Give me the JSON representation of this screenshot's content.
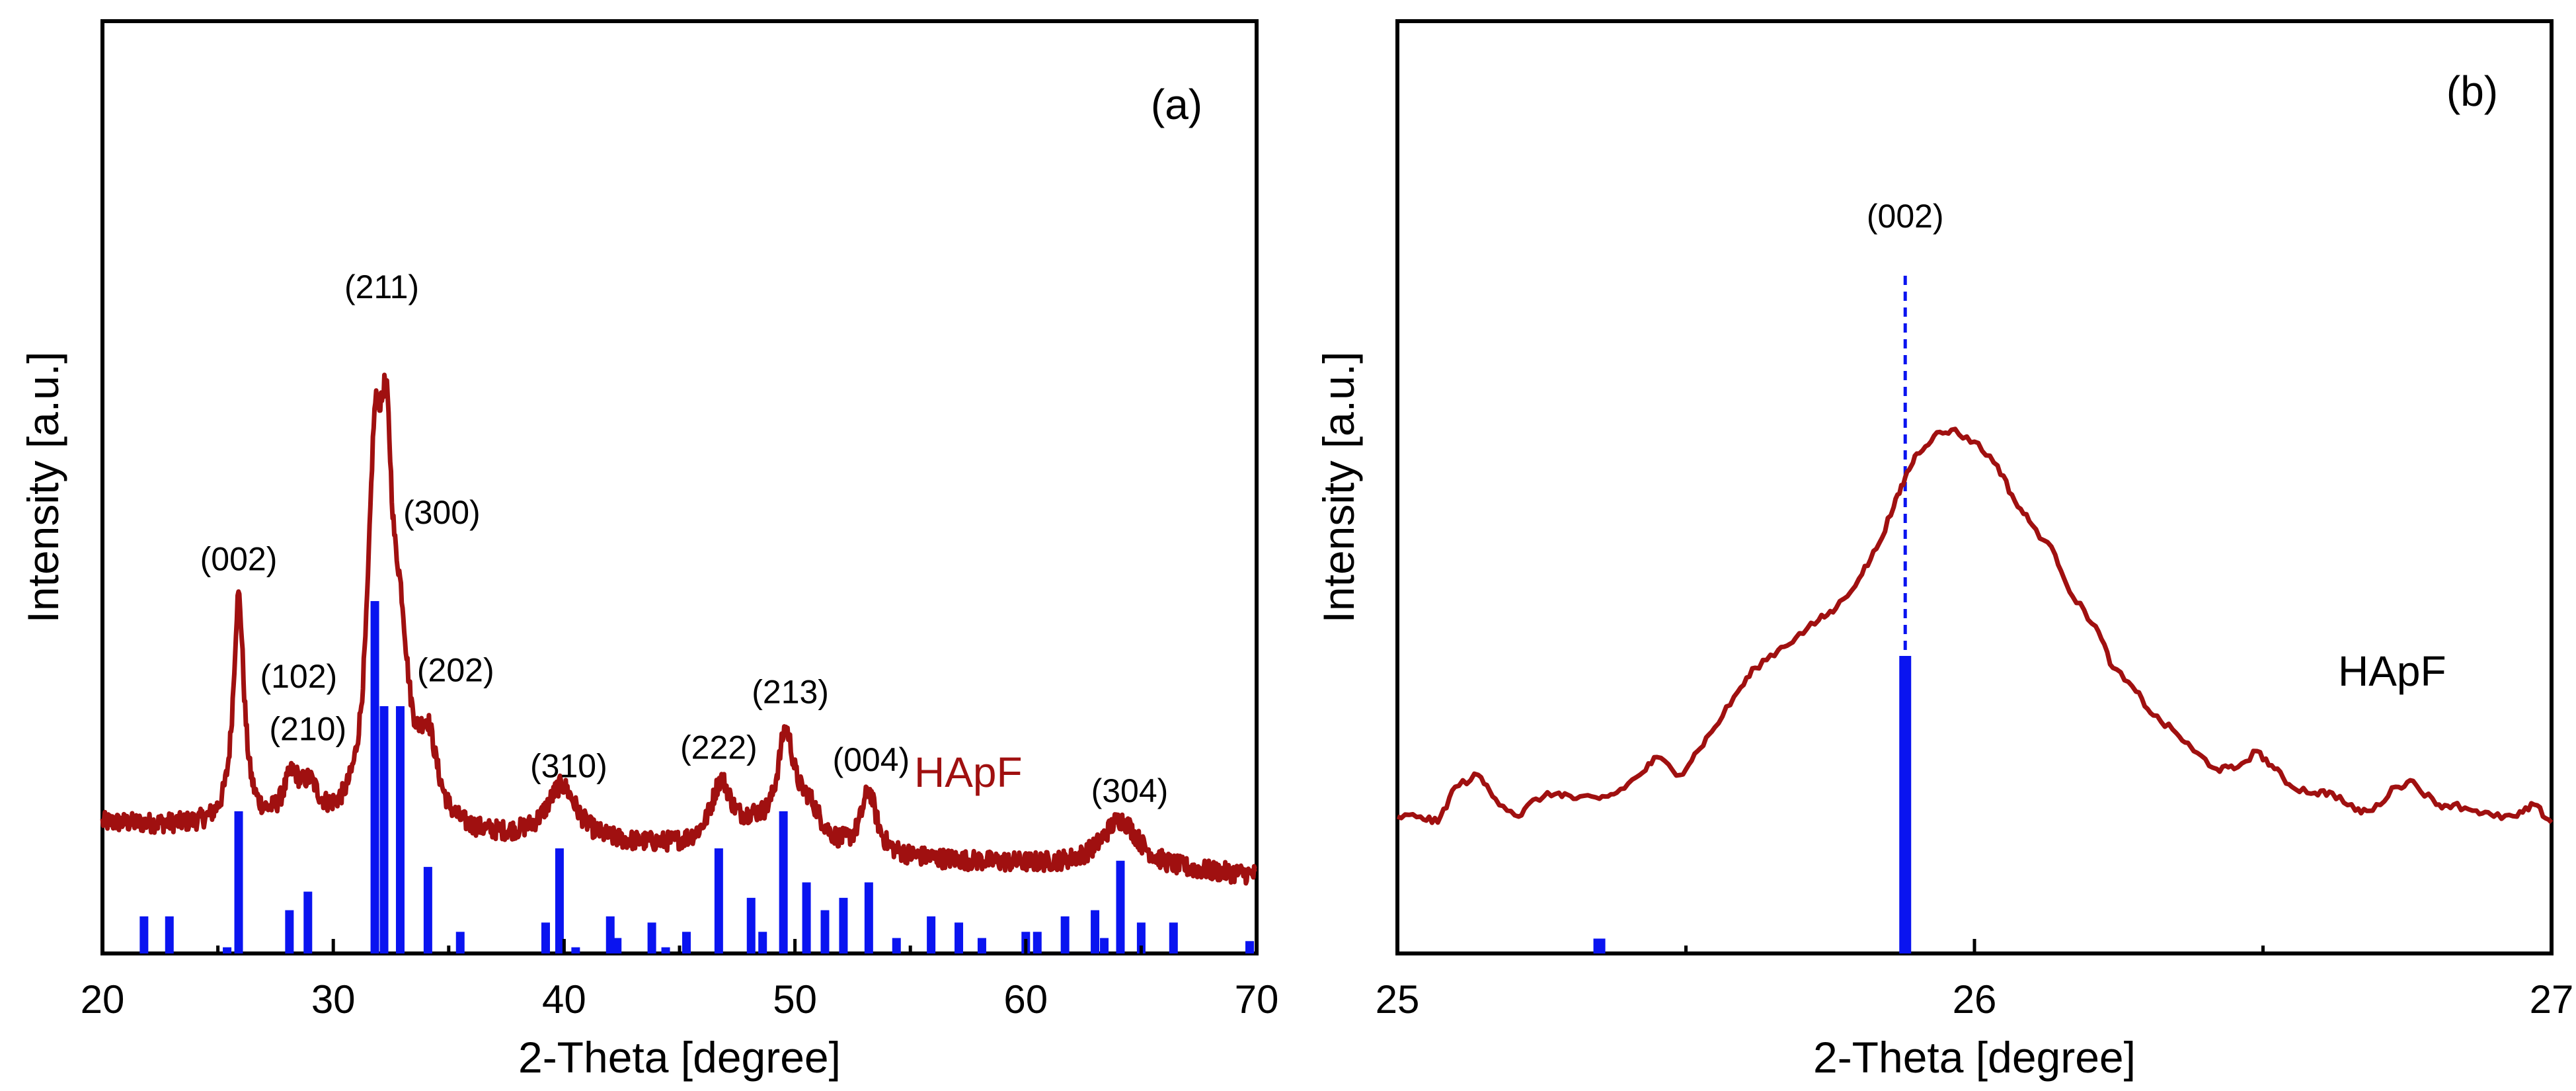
{
  "colors": {
    "curve": "#a01010",
    "reference": "#0a14f0",
    "axis": "#000000"
  },
  "chart_data": [
    {
      "type": "line",
      "panel_label": "(a)",
      "xlabel": "2-Theta [degree]",
      "ylabel": "Intensity [a.u.]",
      "xlim": [
        20,
        70
      ],
      "ylim": [
        0,
        100
      ],
      "xticks": [
        20,
        30,
        40,
        50,
        60,
        70
      ],
      "sample_label": "HApF",
      "series": [
        {
          "name": "HApF",
          "baseline": 21,
          "tail": 12.5,
          "peaks": [
            {
              "x": 25.9,
              "height": 37,
              "width": 0.28
            },
            {
              "x": 28.2,
              "height": 7,
              "width": 0.45
            },
            {
              "x": 29.0,
              "height": 5,
              "width": 0.45
            },
            {
              "x": 31.8,
              "height": 52,
              "width": 0.38
            },
            {
              "x": 32.3,
              "height": 44,
              "width": 0.32
            },
            {
              "x": 32.9,
              "height": 24,
              "width": 0.45
            },
            {
              "x": 34.1,
              "height": 13,
              "width": 0.5
            },
            {
              "x": 39.9,
              "height": 9,
              "width": 0.8
            },
            {
              "x": 46.8,
              "height": 10,
              "width": 0.55
            },
            {
              "x": 48.2,
              "height": 3,
              "width": 0.8
            },
            {
              "x": 49.6,
              "height": 17,
              "width": 0.45
            },
            {
              "x": 50.6,
              "height": 6,
              "width": 0.7
            },
            {
              "x": 53.2,
              "height": 10,
              "width": 0.4
            },
            {
              "x": 64.1,
              "height": 8,
              "width": 1.0
            }
          ]
        }
      ],
      "reference": {
        "x": [
          21.8,
          22.9,
          25.4,
          25.9,
          28.1,
          28.9,
          31.8,
          32.2,
          32.9,
          34.1,
          35.5,
          39.2,
          39.8,
          40.5,
          42.0,
          42.3,
          43.8,
          44.4,
          45.3,
          46.7,
          48.1,
          48.6,
          49.5,
          50.5,
          51.3,
          52.1,
          53.2,
          54.4,
          55.9,
          57.1,
          58.1,
          60.0,
          60.5,
          61.7,
          63.0,
          63.4,
          64.1,
          65.0,
          66.4,
          69.7
        ],
        "values": [
          6,
          6,
          1,
          23,
          7,
          10,
          57,
          40,
          40,
          14,
          3.5,
          5,
          17,
          1,
          6,
          2.5,
          5,
          1,
          3.5,
          17,
          9,
          3.5,
          23,
          11.5,
          7,
          9,
          11.5,
          2.5,
          6,
          5,
          2.5,
          3.5,
          3.5,
          6,
          7,
          2.5,
          15,
          5,
          5,
          2
        ]
      },
      "annotations": [
        {
          "text": "(002)",
          "x": 25.9,
          "y": 62
        },
        {
          "text": "(102)",
          "x": 28.5,
          "y": 43
        },
        {
          "text": "(210)",
          "x": 28.9,
          "y": 34.5
        },
        {
          "text": "(211)",
          "x": 32.1,
          "y": 106
        },
        {
          "text": "(300)",
          "x": 34.7,
          "y": 69.5
        },
        {
          "text": "(202)",
          "x": 35.3,
          "y": 44
        },
        {
          "text": "(310)",
          "x": 40.2,
          "y": 28.5
        },
        {
          "text": "(222)",
          "x": 46.7,
          "y": 31.5
        },
        {
          "text": "(213)",
          "x": 49.8,
          "y": 40.5
        },
        {
          "text": "(004)",
          "x": 53.3,
          "y": 29.5
        },
        {
          "text": "(304)",
          "x": 64.5,
          "y": 24.5
        }
      ]
    },
    {
      "type": "line",
      "panel_label": "(b)",
      "xlabel": "2-Theta [degree]",
      "ylabel": "Intensity [a.u.]",
      "xlim": [
        25,
        27
      ],
      "ylim": [
        0,
        100
      ],
      "xticks": [
        25,
        26,
        27
      ],
      "sample_label": "HApF",
      "series": [
        {
          "name": "HApF",
          "x": [
            25.0,
            25.04,
            25.07,
            25.1,
            25.14,
            25.17,
            25.21,
            25.24,
            25.28,
            25.31,
            25.35,
            25.38,
            25.42,
            25.45,
            25.49,
            25.52,
            25.55,
            25.59,
            25.62,
            25.66,
            25.69,
            25.73,
            25.76,
            25.8,
            25.83,
            25.86,
            25.88,
            25.9,
            25.93,
            25.96,
            26.0,
            26.04,
            26.07,
            26.1,
            26.14,
            26.17,
            26.21,
            26.24,
            26.28,
            26.31,
            26.35,
            26.38,
            26.42,
            26.45,
            26.49,
            26.52,
            26.55,
            26.59,
            26.62,
            26.66,
            26.69,
            26.73,
            26.76,
            26.8,
            26.83,
            26.87,
            26.9,
            26.94,
            26.97,
            27.0
          ],
          "values": [
            23,
            23,
            22,
            28,
            30,
            26,
            23,
            26,
            27,
            26,
            26,
            27,
            30,
            33,
            30,
            34,
            38,
            44,
            48,
            51,
            53,
            56,
            58,
            63,
            68,
            75,
            80,
            84,
            87,
            88,
            86,
            82,
            76,
            72,
            67,
            60,
            55,
            48,
            44,
            40,
            37,
            34,
            31,
            31,
            34,
            31,
            28,
            27,
            27,
            24,
            24,
            28,
            29,
            25,
            25,
            24,
            23,
            23,
            25,
            22
          ]
        }
      ],
      "reference": {
        "x": [
          25.35,
          25.88
        ],
        "values": [
          2.5,
          50
        ]
      },
      "dashed_line": {
        "x": 25.88,
        "y_from": 51,
        "y_to": 114
      },
      "annotations": [
        {
          "text": "(002)",
          "x": 25.88,
          "y": 122
        }
      ],
      "sample_label_pos": {
        "x": 26.63,
        "y": 45
      }
    }
  ]
}
